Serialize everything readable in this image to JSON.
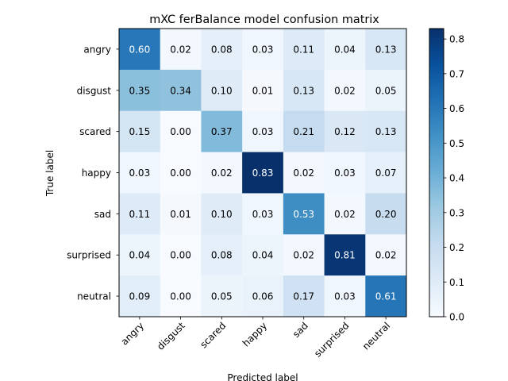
{
  "chart_data": {
    "type": "heatmap",
    "title": "mXC ferBalance model confusion matrix",
    "xlabel": "Predicted label",
    "ylabel": "True label",
    "x_categories": [
      "angry",
      "disgust",
      "scared",
      "happy",
      "sad",
      "surprised",
      "neutral"
    ],
    "y_categories": [
      "angry",
      "disgust",
      "scared",
      "happy",
      "sad",
      "surprised",
      "neutral"
    ],
    "values": [
      [
        0.6,
        0.02,
        0.08,
        0.03,
        0.11,
        0.04,
        0.13
      ],
      [
        0.35,
        0.34,
        0.1,
        0.01,
        0.13,
        0.02,
        0.05
      ],
      [
        0.15,
        0.0,
        0.37,
        0.03,
        0.21,
        0.12,
        0.13
      ],
      [
        0.03,
        0.0,
        0.02,
        0.83,
        0.02,
        0.03,
        0.07
      ],
      [
        0.11,
        0.01,
        0.1,
        0.03,
        0.53,
        0.02,
        0.2
      ],
      [
        0.04,
        0.0,
        0.08,
        0.04,
        0.02,
        0.81,
        0.02
      ],
      [
        0.09,
        0.0,
        0.05,
        0.06,
        0.17,
        0.03,
        0.61
      ]
    ],
    "cell_labels": [
      [
        "0.60",
        "0.02",
        "0.08",
        "0.03",
        "0.11",
        "0.04",
        "0.13"
      ],
      [
        "0.35",
        "0.34",
        "0.10",
        "0.01",
        "0.13",
        "0.02",
        "0.05"
      ],
      [
        "0.15",
        "0.00",
        "0.37",
        "0.03",
        "0.21",
        "0.12",
        "0.13"
      ],
      [
        "0.03",
        "0.00",
        "0.02",
        "0.83",
        "0.02",
        "0.03",
        "0.07"
      ],
      [
        "0.11",
        "0.01",
        "0.10",
        "0.03",
        "0.53",
        "0.02",
        "0.20"
      ],
      [
        "0.04",
        "0.00",
        "0.08",
        "0.04",
        "0.02",
        "0.81",
        "0.02"
      ],
      [
        "0.09",
        "0.00",
        "0.05",
        "0.06",
        "0.17",
        "0.03",
        "0.61"
      ]
    ],
    "colormap": "Blues",
    "color_range": [
      0,
      0.83
    ],
    "colorbar_ticks": [
      "0.0",
      "0.1",
      "0.2",
      "0.3",
      "0.4",
      "0.5",
      "0.6",
      "0.7",
      "0.8"
    ],
    "colorbar_tick_values": [
      0,
      0.1,
      0.2,
      0.3,
      0.4,
      0.5,
      0.6,
      0.7,
      0.8
    ],
    "text_colors": {
      "dark_cell": "#ffffff",
      "light_cell": "#000000"
    },
    "grid": false
  }
}
